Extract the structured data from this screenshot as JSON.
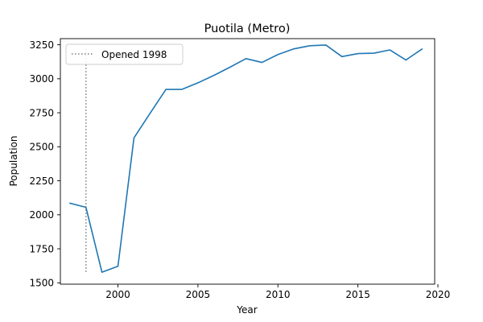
{
  "chart_data": {
    "type": "line",
    "title": "Puotila (Metro)",
    "xlabel": "Year",
    "ylabel": "Population",
    "xlim": [
      1996.4,
      2019.8
    ],
    "ylim": [
      1490,
      3295
    ],
    "xticks": [
      2000,
      2005,
      2010,
      2015,
      2020
    ],
    "yticks": [
      1500,
      1750,
      2000,
      2250,
      2500,
      2750,
      3000,
      3250
    ],
    "grid": false,
    "legend_position": "top-left",
    "series": [
      {
        "color": "#1f77b4",
        "x": [
          1997,
          1998,
          1999,
          2000,
          2001,
          2002,
          2003,
          2004,
          2005,
          2006,
          2007,
          2008,
          2009,
          2010,
          2011,
          2012,
          2013,
          2014,
          2015,
          2016,
          2017,
          2018,
          2019
        ],
        "y": [
          2085,
          2055,
          1578,
          1622,
          2565,
          2745,
          2922,
          2922,
          2970,
          3025,
          3085,
          3148,
          3120,
          3178,
          3220,
          3243,
          3248,
          3163,
          3185,
          3188,
          3212,
          3138,
          3218
        ]
      }
    ],
    "annotations": [
      {
        "label": "Opened 1998",
        "x": 1998,
        "y_from": 1580,
        "y_to": 3230,
        "style": "dotted",
        "color": "#7f7f7f"
      }
    ]
  }
}
